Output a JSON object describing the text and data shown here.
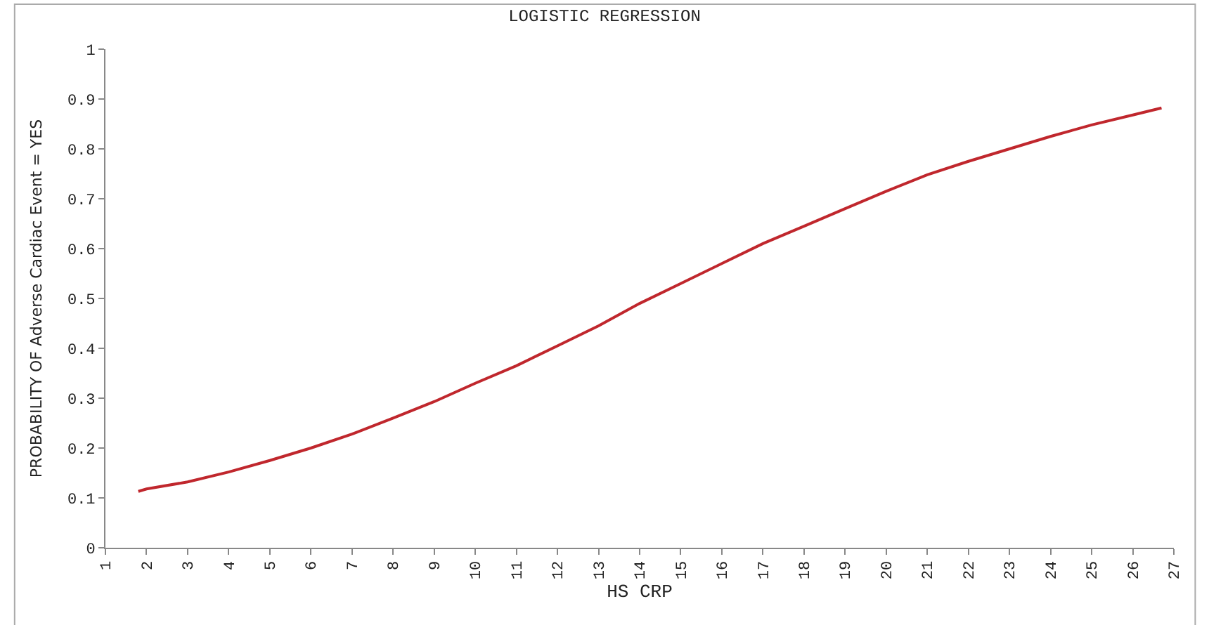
{
  "chart_data": {
    "type": "line",
    "title": "LOGISTIC REGRESSION",
    "xlabel": "HS CRP",
    "ylabel": "PROBABILITY OF Adverse Cardiac Event = YES",
    "x": [
      1.8,
      2,
      3,
      4,
      5,
      6,
      7,
      8,
      9,
      10,
      11,
      12,
      13,
      14,
      15,
      16,
      17,
      18,
      19,
      20,
      21,
      22,
      23,
      24,
      25,
      26,
      26.7
    ],
    "series": [
      {
        "color": "#c0272d",
        "values": [
          0.113,
          0.118,
          0.132,
          0.152,
          0.175,
          0.2,
          0.228,
          0.26,
          0.293,
          0.33,
          0.365,
          0.405,
          0.445,
          0.49,
          0.53,
          0.57,
          0.61,
          0.645,
          0.68,
          0.715,
          0.748,
          0.775,
          0.8,
          0.825,
          0.848,
          0.868,
          0.882
        ]
      }
    ],
    "xlim": [
      1,
      27
    ],
    "xticks": [
      1,
      2,
      3,
      4,
      5,
      6,
      7,
      8,
      9,
      10,
      11,
      12,
      13,
      14,
      15,
      16,
      17,
      18,
      19,
      20,
      21,
      22,
      23,
      24,
      25,
      26,
      27
    ],
    "ylim": [
      0,
      1
    ],
    "yticks": [
      0,
      0.1,
      0.2,
      0.3,
      0.4,
      0.5,
      0.6,
      0.7,
      0.8,
      0.9,
      1
    ],
    "marker": "none",
    "line_style": "solid"
  }
}
